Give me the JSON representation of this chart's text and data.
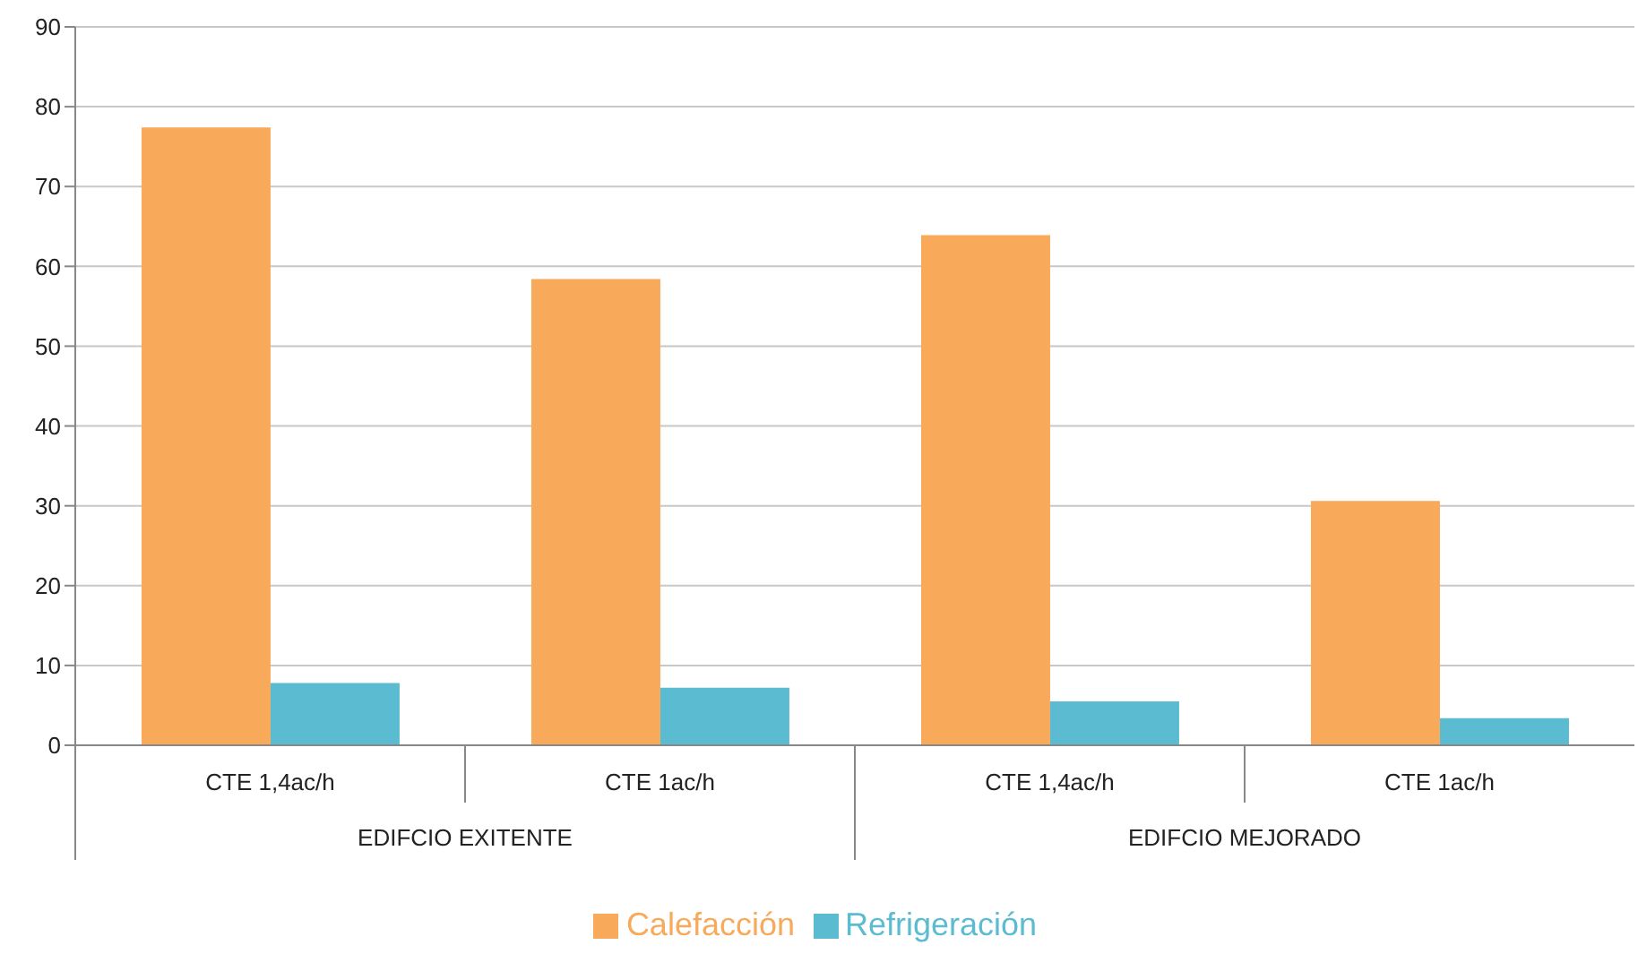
{
  "chart_data": {
    "type": "bar",
    "categories": [
      "CTE 1,4ac/h",
      "CTE 1ac/h",
      "CTE 1,4ac/h",
      "CTE 1ac/h"
    ],
    "series": [
      {
        "name": "Calefacción",
        "color": "#f9a95a",
        "values": [
          77.4,
          58.4,
          63.9,
          30.6
        ]
      },
      {
        "name": "Refrigeración",
        "color": "#5bbcd1",
        "values": [
          7.8,
          7.2,
          5.5,
          3.4
        ]
      }
    ],
    "annotations": [
      "EDIFCIO EXITENTE",
      "EDIFCIO MEJORADO"
    ],
    "ylim": [
      0,
      90
    ],
    "yticks": [
      0,
      10,
      20,
      30,
      40,
      50,
      60,
      70,
      80,
      90
    ],
    "grid": "y",
    "legend": "bottom"
  }
}
